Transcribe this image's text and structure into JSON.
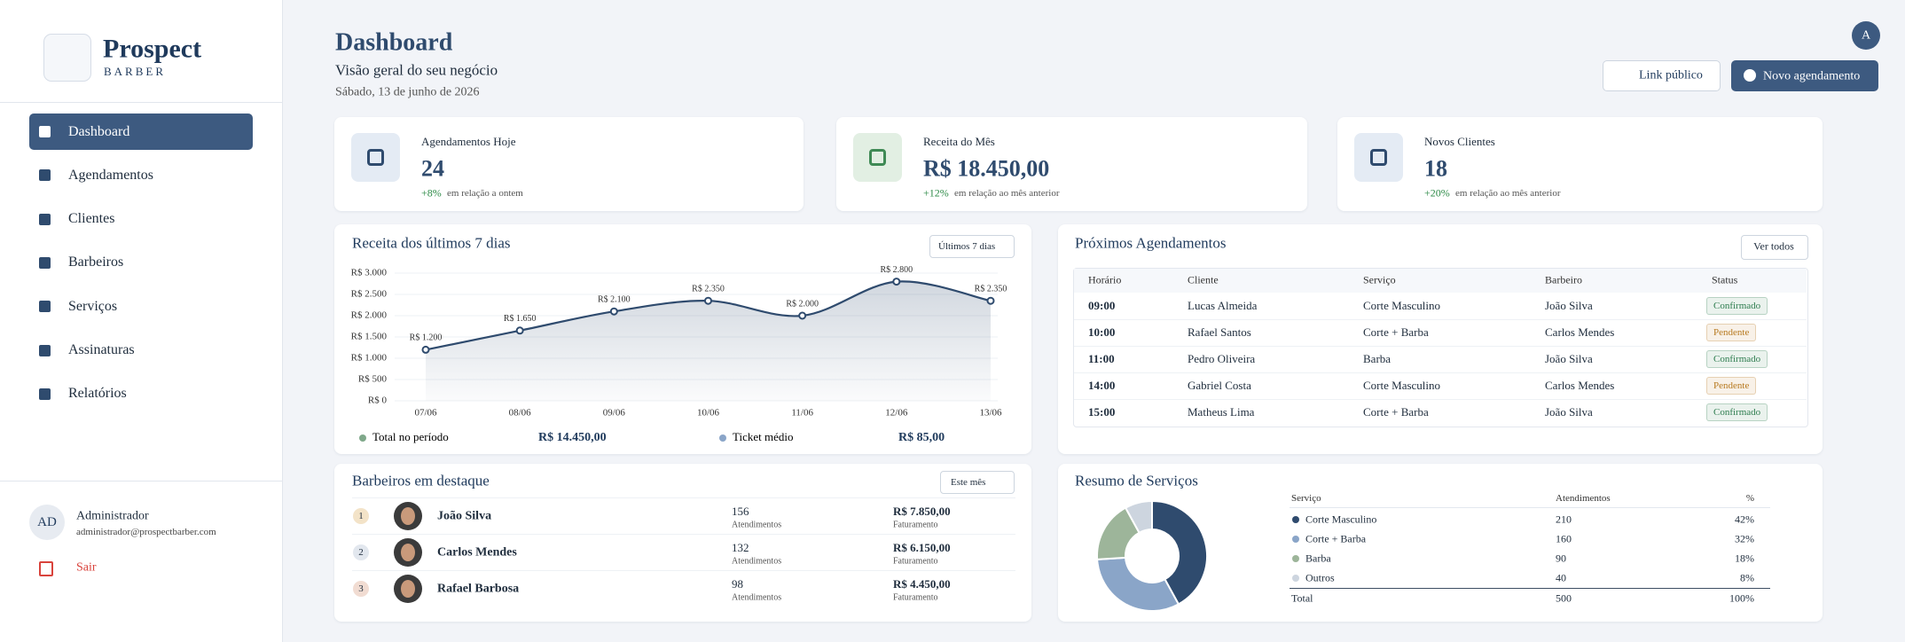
{
  "sidebar": {
    "brand": "Prospect",
    "brand_sub": "BARBER",
    "nav": [
      "Dashboard",
      "Agendamentos",
      "Clientes",
      "Barbeiros",
      "Serviços",
      "Assinaturas",
      "Relatórios"
    ],
    "user_initials": "AD",
    "user_name": "Administrador",
    "user_email": "administrador@prospectbarber.com",
    "logout": "Sair"
  },
  "header": {
    "title": "Dashboard",
    "subtitle": "Visão geral do seu negócio",
    "date": "Sábado, 13 de junho de 2026",
    "avatar": "A",
    "link_button": "Link público",
    "new_button": "Novo agendamento"
  },
  "kpis": [
    {
      "label": "Agendamentos Hoje",
      "value": 24,
      "change": "+8%",
      "note": "em relação a ontem"
    },
    {
      "label": "Receita do Mês",
      "value": "R$ 18.450,00",
      "change": "+12%",
      "note": "em relação ao mês anterior"
    },
    {
      "label": "Novos Clientes",
      "value": 18,
      "change": "+20%",
      "note": "em relação ao mês anterior"
    }
  ],
  "chart_data": [
    {
      "type": "line",
      "title": "Receita dos últimos 7 dias",
      "filter": "Últimos 7 dias",
      "categories": [
        "07/06",
        "08/06",
        "09/06",
        "10/06",
        "11/06",
        "12/06",
        "13/06"
      ],
      "values": [
        1200,
        1650,
        2100,
        2350,
        2000,
        2800,
        2350
      ],
      "value_labels": [
        "R$ 1.200",
        "R$ 1.650",
        "R$ 2.100",
        "R$ 2.350",
        "R$ 2.000",
        "R$ 2.800",
        "R$ 2.350"
      ],
      "color": "#2f4b6e",
      "ylim": [
        0,
        3000
      ],
      "yticks": [
        {
          "value": 0,
          "label": "R$ 0"
        },
        {
          "value": 500,
          "label": "R$ 500"
        },
        {
          "value": 1000,
          "label": "R$ 1.000"
        },
        {
          "value": 1500,
          "label": "R$ 1.500"
        },
        {
          "value": 2000,
          "label": "R$ 2.000"
        },
        {
          "value": 2500,
          "label": "R$ 2.500"
        },
        {
          "value": 3000,
          "label": "R$ 3.000"
        }
      ],
      "grid": true,
      "summary": [
        {
          "label": "Total no período",
          "value": "R$ 14.450,00",
          "color": "#7fa88a"
        },
        {
          "label": "Ticket médio",
          "value": "R$ 85,00",
          "color": "#8aa5c8"
        }
      ]
    },
    {
      "type": "pie",
      "donut": true,
      "title": "Resumo de Serviços",
      "categories": [
        "Corte Masculino",
        "Corte + Barba",
        "Barba",
        "Outros"
      ],
      "values": [
        42,
        32,
        18,
        8
      ],
      "value_labels": [
        "42%",
        "32%",
        "18%",
        "8%"
      ],
      "colors": [
        "#2f4b6e",
        "#8aa5c8",
        "#9db59a",
        "#cdd5df"
      ]
    }
  ],
  "services_table": {
    "headers": [
      "Serviço",
      "Atendimentos",
      "%"
    ],
    "counts": [
      210,
      160,
      90,
      40
    ],
    "total": {
      "label": "Total",
      "count": 500,
      "pct": "100%"
    }
  },
  "appointments": {
    "title": "Próximos Agendamentos",
    "button": "Ver todos",
    "headers": [
      "Horário",
      "Cliente",
      "Serviço",
      "Barbeiro",
      "Status"
    ],
    "rows": [
      {
        "time": "09:00",
        "client": "Lucas Almeida",
        "service": "Corte Masculino",
        "barber": "João Silva",
        "status": "Confirmado",
        "status_color": "#2e7d4f"
      },
      {
        "time": "10:00",
        "client": "Rafael Santos",
        "service": "Corte + Barba",
        "barber": "Carlos Mendes",
        "status": "Pendente",
        "status_color": "#b7791f"
      },
      {
        "time": "11:00",
        "client": "Pedro Oliveira",
        "service": "Barba",
        "barber": "João Silva",
        "status": "Confirmado",
        "status_color": "#2e7d4f"
      },
      {
        "time": "14:00",
        "client": "Gabriel Costa",
        "service": "Corte Masculino",
        "barber": "Carlos Mendes",
        "status": "Pendente",
        "status_color": "#b7791f"
      },
      {
        "time": "15:00",
        "client": "Matheus Lima",
        "service": "Corte + Barba",
        "barber": "João Silva",
        "status": "Confirmado",
        "status_color": "#2e7d4f"
      }
    ]
  },
  "barbers": {
    "title": "Barbeiros em destaque",
    "filter": "Este mês",
    "rows": [
      {
        "rank": 1,
        "name": "João Silva",
        "count": 156,
        "count_label": "Atendimentos",
        "revenue": "R$ 7.850,00",
        "revenue_label": "Faturamento",
        "rank_color": "#f3e3c8"
      },
      {
        "rank": 2,
        "name": "Carlos Mendes",
        "count": 132,
        "count_label": "Atendimentos",
        "revenue": "R$ 6.150,00",
        "revenue_label": "Faturamento",
        "rank_color": "#e2e7ee"
      },
      {
        "rank": 3,
        "name": "Rafael Barbosa",
        "count": 98,
        "count_label": "Atendimentos",
        "revenue": "R$ 4.450,00",
        "revenue_label": "Faturamento",
        "rank_color": "#f1dcd2"
      }
    ]
  }
}
